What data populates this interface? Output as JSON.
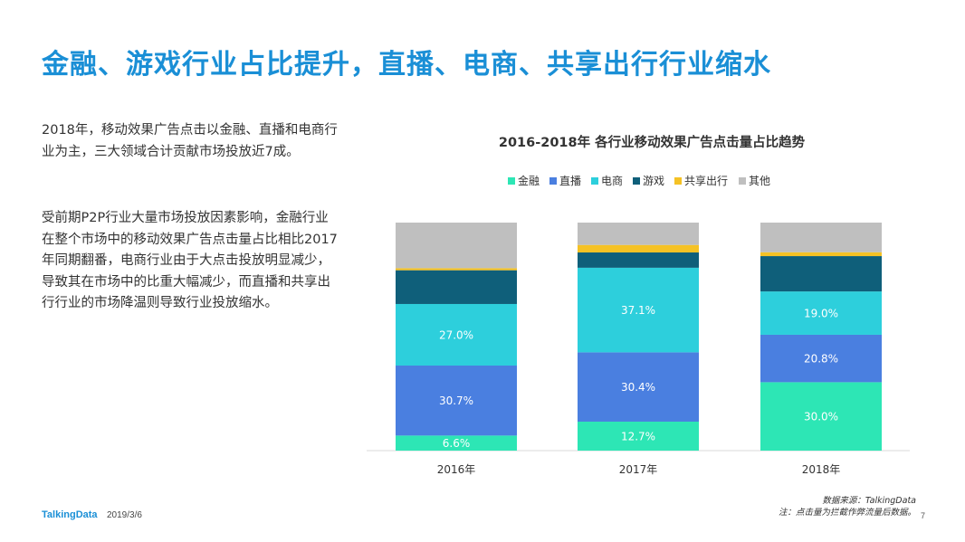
{
  "page": {
    "title": "金融、游戏行业占比提升，直播、电商、共享出行行业缩水",
    "paragraph1": "2018年，移动效果广告点击以金融、直播和电商行业为主，三大领域合计贡献市场投放近7成。",
    "paragraph2": "受前期P2P行业大量市场投放因素影响，金融行业在整个市场中的移动效果广告点击量占比相比2017年同期翻番，电商行业由于大点击投放明显减少，导致其在市场中的比重大幅减少，而直播和共享出行行业的市场降温则导致行业投放缩水。",
    "logo": "TalkingData",
    "date": "2019/3/6",
    "source_line1": "数据来源：TalkingData",
    "source_line2": "注：点击量为拦截作弊流量后数据。",
    "page_number": "7"
  },
  "chart_data": {
    "type": "bar",
    "stacked": true,
    "percent_stacked": true,
    "title": "2016-2018年 各行业移动效果广告点击量占比趋势",
    "xlabel": "",
    "ylabel": "",
    "categories": [
      "2016年",
      "2017年",
      "2018年"
    ],
    "ylim": [
      0,
      100
    ],
    "grid": false,
    "legend_position": "top",
    "series": [
      {
        "name": "金融",
        "color": "#2de6b5",
        "values": [
          6.6,
          12.7,
          30.0
        ],
        "labels": [
          "6.6%",
          "12.7%",
          "30.0%"
        ]
      },
      {
        "name": "直播",
        "color": "#4a7fe0",
        "values": [
          30.7,
          30.4,
          20.8
        ],
        "labels": [
          "30.7%",
          "30.4%",
          "20.8%"
        ]
      },
      {
        "name": "电商",
        "color": "#2dcfdc",
        "values": [
          27.0,
          37.1,
          19.0
        ],
        "labels": [
          "27.0%",
          "37.1%",
          "19.0%"
        ]
      },
      {
        "name": "游戏",
        "color": "#0f5f7a",
        "values": [
          14.8,
          6.7,
          15.5
        ],
        "labels": [
          "",
          "",
          ""
        ]
      },
      {
        "name": "共享出行",
        "color": "#f5c225",
        "values": [
          0.9,
          3.3,
          1.7
        ],
        "labels": [
          "",
          "",
          ""
        ]
      },
      {
        "name": "其他",
        "color": "#bfbfbf",
        "values": [
          20.0,
          9.8,
          13.0
        ],
        "labels": [
          "",
          "",
          ""
        ]
      }
    ]
  }
}
